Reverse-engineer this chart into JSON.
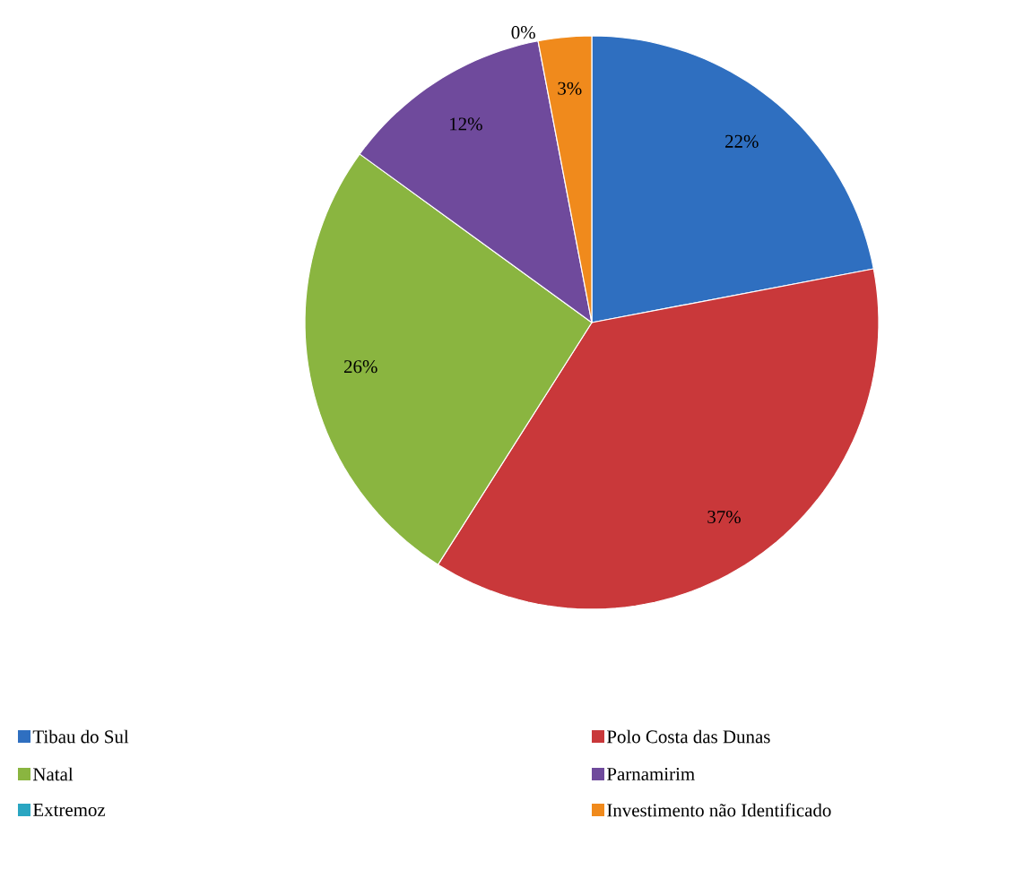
{
  "chart_data": {
    "type": "pie",
    "categories": [
      "Tibau do Sul",
      "Polo Costa das Dunas",
      "Natal",
      "Parnamirim",
      "Extremoz",
      "Investimento não Identificado"
    ],
    "values": [
      22,
      37,
      26,
      12,
      0,
      3
    ],
    "value_labels": [
      "22%",
      "37%",
      "26%",
      "12%",
      "0%",
      "3%"
    ],
    "colors": [
      "#2f6fc0",
      "#c9383a",
      "#8ab540",
      "#6f4a9c",
      "#2aa6c2",
      "#f08a1c"
    ],
    "legend": "bottom"
  }
}
